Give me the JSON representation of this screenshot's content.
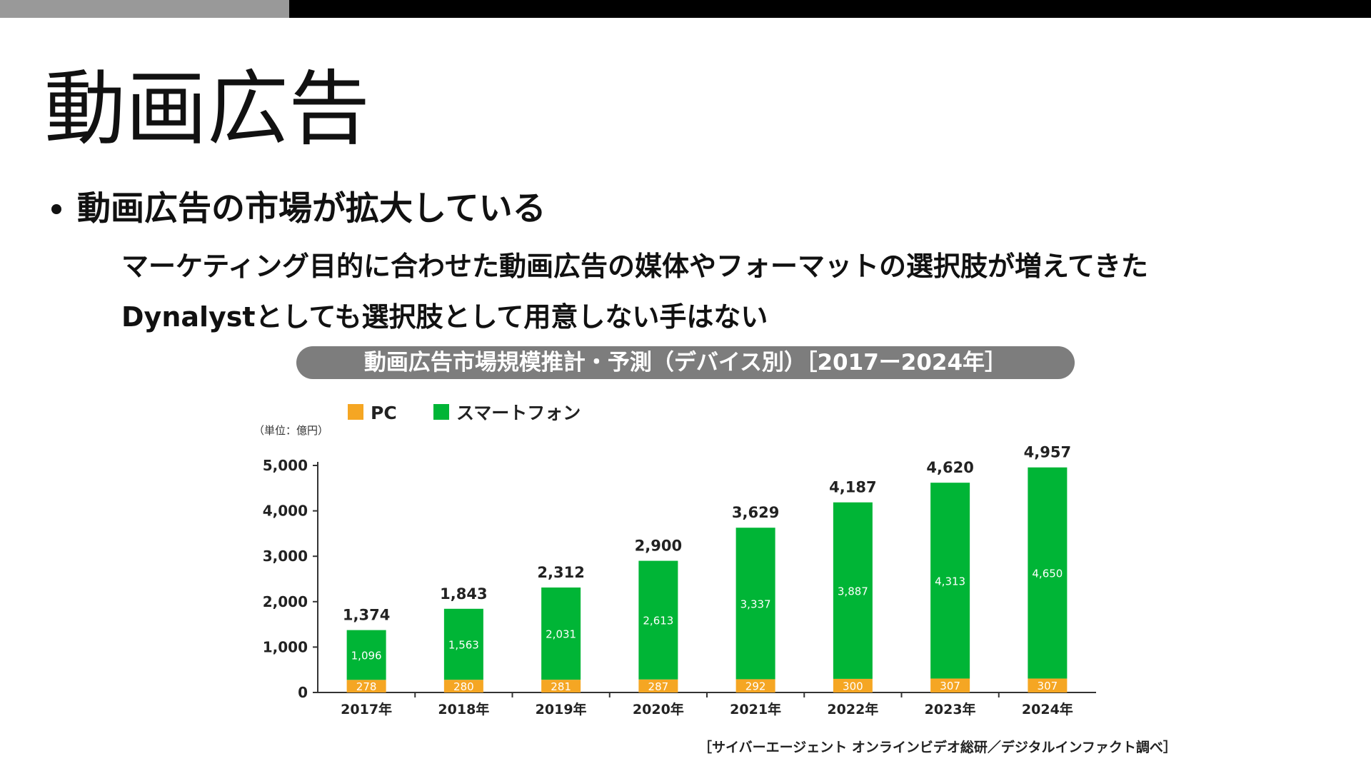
{
  "slide": {
    "title": "動画広告",
    "bullet": "動画広告の市場が拡大している",
    "sub_lines": [
      "マーケティング目的に合わせた動画広告の媒体やフォーマットの選択肢が増えてきた",
      "Dynalystとしても選択肢として用意しない手はない"
    ]
  },
  "colors": {
    "topbar_left": "#999999",
    "topbar_right": "#000000",
    "pc": "#f5a623",
    "smartphone": "#00b536",
    "banner": "#7d7d7d"
  },
  "chart_data": {
    "type": "bar",
    "stacked": true,
    "title": "動画広告市場規模推計・予測（デバイス別）［2017ー2024年］",
    "unit_label": "（単位：億円）",
    "categories": [
      "2017年",
      "2018年",
      "2019年",
      "2020年",
      "2021年",
      "2022年",
      "2023年",
      "2024年"
    ],
    "series": [
      {
        "name": "PC",
        "color": "#f5a623",
        "values": [
          278,
          280,
          281,
          287,
          292,
          300,
          307,
          307
        ]
      },
      {
        "name": "スマートフォン",
        "color": "#00b536",
        "values": [
          1096,
          1563,
          2031,
          2613,
          3337,
          3887,
          4313,
          4650
        ]
      }
    ],
    "totals": [
      1374,
      1843,
      2312,
      2900,
      3629,
      4187,
      4620,
      4957
    ],
    "ylim": [
      0,
      5000
    ],
    "yticks": [
      0,
      1000,
      2000,
      3000,
      4000,
      5000
    ],
    "legend_position": "top-left",
    "grid": false,
    "source": "［サイバーエージェント オンラインビデオ総研／デジタルインファクト調べ］"
  }
}
